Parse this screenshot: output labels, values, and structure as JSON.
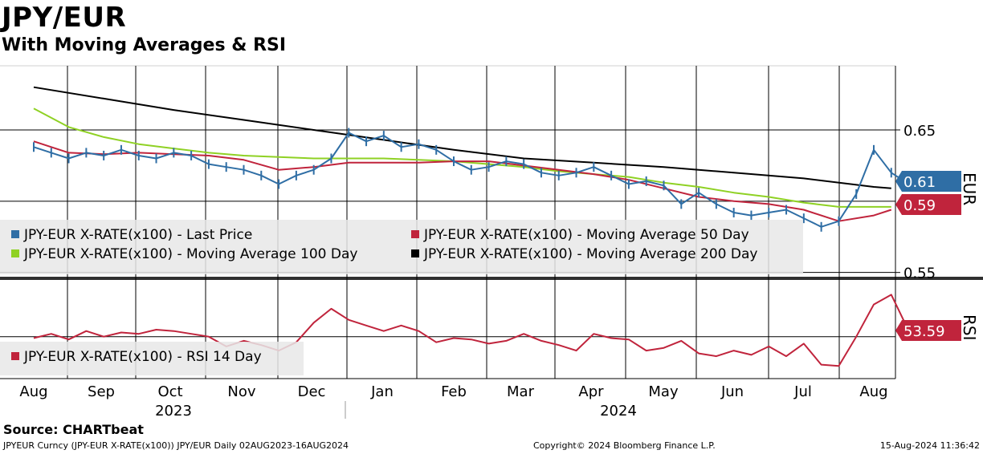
{
  "title": "JPY/EUR",
  "subtitle": "With Moving Averages & RSI",
  "source": "Source:  CHARTbeat",
  "footer": {
    "left": "JPYEUR Curncy (JPY-EUR X-RATE(x100)) JPY/EUR  Daily 02AUG2023-16AUG2024",
    "middle": "Copyright© 2024 Bloomberg Finance L.P.",
    "right": "15-Aug-2024 11:36:42"
  },
  "colors": {
    "last_price": "#2f6ea5",
    "ma50": "#c0243c",
    "ma100": "#8fd124",
    "ma200": "#000000",
    "rsi": "#c0243c",
    "last_price_badge": "#2f6ea5",
    "ma_badge": "#c0243c",
    "rsi_badge": "#c0243c"
  },
  "chart_data": [
    {
      "type": "line",
      "name": "price_panel",
      "y_axis_label": "EUR",
      "y_ticks": [
        "0.65",
        "0.55"
      ],
      "y_tick_values": [
        0.65,
        0.55
      ],
      "ylim": [
        0.547,
        0.695
      ],
      "x_month_labels": [
        "Aug",
        "Sep",
        "Oct",
        "Nov",
        "Dec",
        "Jan",
        "Feb",
        "Mar",
        "Apr",
        "May",
        "Jun",
        "Jul",
        "Aug"
      ],
      "x_year_labels": [
        "2023",
        "2024"
      ],
      "badges": [
        {
          "label": "0.61",
          "value": 0.61,
          "color_key": "last_price_badge"
        },
        {
          "label": "0.59",
          "value": 0.59,
          "color_key": "ma_badge"
        }
      ],
      "series": [
        {
          "name": "JPY-EUR X-RATE(x100) - Last Price",
          "color_key": "last_price",
          "x": [
            0,
            0.5,
            1,
            1.5,
            2,
            2.5,
            3,
            3.5,
            4,
            4.5,
            5,
            5.5,
            6,
            6.5,
            7,
            7.5,
            8,
            8.5,
            9,
            9.5,
            10,
            10.5,
            11,
            11.5,
            12,
            12.5,
            13,
            13.5,
            14,
            14.5,
            15,
            15.5,
            16,
            16.5,
            17,
            17.5,
            18,
            18.5,
            19,
            19.5,
            20,
            20.5,
            21,
            21.5,
            22,
            22.5,
            23,
            23.5,
            24,
            24.5,
            25
          ],
          "values": [
            0.638,
            0.634,
            0.63,
            0.634,
            0.632,
            0.636,
            0.632,
            0.63,
            0.634,
            0.632,
            0.626,
            0.624,
            0.622,
            0.618,
            0.612,
            0.618,
            0.622,
            0.63,
            0.648,
            0.642,
            0.646,
            0.638,
            0.64,
            0.636,
            0.628,
            0.622,
            0.624,
            0.628,
            0.626,
            0.62,
            0.618,
            0.62,
            0.624,
            0.618,
            0.612,
            0.614,
            0.611,
            0.598,
            0.606,
            0.598,
            0.592,
            0.59,
            0.592,
            0.594,
            0.588,
            0.582,
            0.586,
            0.605,
            0.636,
            0.62,
            0.612
          ]
        },
        {
          "name": "JPY-EUR X-RATE(x100) - Moving Average 50 Day",
          "color_key": "ma50",
          "x": [
            0,
            1,
            2,
            3,
            4,
            5,
            6,
            7,
            8,
            9,
            10,
            11,
            12,
            13,
            14,
            15,
            16,
            17,
            18,
            19,
            20,
            21,
            22,
            23,
            24,
            24.5
          ],
          "values": [
            0.642,
            0.634,
            0.633,
            0.634,
            0.633,
            0.632,
            0.629,
            0.622,
            0.624,
            0.627,
            0.627,
            0.627,
            0.628,
            0.628,
            0.625,
            0.622,
            0.619,
            0.615,
            0.609,
            0.603,
            0.6,
            0.598,
            0.594,
            0.586,
            0.59,
            0.594
          ]
        },
        {
          "name": "JPY-EUR X-RATE(x100) - Moving Average 100 Day",
          "color_key": "ma100",
          "x": [
            0,
            1,
            2,
            3,
            4,
            5,
            6,
            7,
            8,
            9,
            10,
            11,
            12,
            13,
            14,
            15,
            16,
            17,
            18,
            19,
            20,
            21,
            22,
            23,
            24,
            24.5
          ],
          "values": [
            0.665,
            0.652,
            0.645,
            0.64,
            0.637,
            0.634,
            0.632,
            0.631,
            0.63,
            0.63,
            0.63,
            0.629,
            0.628,
            0.626,
            0.624,
            0.621,
            0.619,
            0.617,
            0.613,
            0.61,
            0.606,
            0.603,
            0.599,
            0.596,
            0.596,
            0.596
          ]
        },
        {
          "name": "JPY-EUR X-RATE(x100) - Moving Average 200 Day",
          "color_key": "ma200",
          "x": [
            0,
            2,
            4,
            6,
            8,
            10,
            12,
            14,
            16,
            18,
            20,
            22,
            24,
            24.5
          ],
          "values": [
            0.68,
            0.672,
            0.664,
            0.657,
            0.65,
            0.643,
            0.636,
            0.63,
            0.627,
            0.624,
            0.62,
            0.616,
            0.61,
            0.609
          ]
        }
      ]
    },
    {
      "type": "line",
      "name": "rsi_panel",
      "y_axis_label": "RSI",
      "ylim": [
        20,
        90
      ],
      "badges": [
        {
          "label": "53.59",
          "value": 53.59,
          "color_key": "rsi_badge"
        }
      ],
      "series": [
        {
          "name": "JPY-EUR X-RATE(x100) - RSI 14 Day",
          "color_key": "rsi",
          "x": [
            0,
            0.5,
            1,
            1.5,
            2,
            2.5,
            3,
            3.5,
            4,
            4.5,
            5,
            5.5,
            6,
            6.5,
            7,
            7.5,
            8,
            8.5,
            9,
            9.5,
            10,
            10.5,
            11,
            11.5,
            12,
            12.5,
            13,
            13.5,
            14,
            14.5,
            15,
            15.5,
            16,
            16.5,
            17,
            17.5,
            18,
            18.5,
            19,
            19.5,
            20,
            20.5,
            21,
            21.5,
            22,
            22.5,
            23,
            23.5,
            24,
            24.5,
            25
          ],
          "values": [
            49,
            52,
            48,
            54,
            50,
            53,
            52,
            55,
            54,
            52,
            50,
            43,
            47,
            44,
            40,
            46,
            60,
            70,
            62,
            58,
            54,
            58,
            54,
            46,
            49,
            48,
            45,
            47,
            52,
            47,
            44,
            40,
            52,
            49,
            48,
            40,
            42,
            47,
            38,
            36,
            40,
            37,
            43,
            36,
            45,
            30,
            29,
            50,
            73,
            80,
            54
          ]
        }
      ]
    }
  ],
  "legend": {
    "price_items": [
      {
        "label": "JPY-EUR X-RATE(x100) - Last Price",
        "color_key": "last_price"
      },
      {
        "label": "JPY-EUR X-RATE(x100) - Moving Average 50 Day",
        "color_key": "ma50"
      },
      {
        "label": "JPY-EUR X-RATE(x100) - Moving Average 100 Day",
        "color_key": "ma100"
      },
      {
        "label": "JPY-EUR X-RATE(x100) - Moving Average 200 Day",
        "color_key": "ma200"
      }
    ],
    "rsi_item": {
      "label": "JPY-EUR X-RATE(x100) - RSI 14 Day",
      "color_key": "rsi"
    }
  }
}
